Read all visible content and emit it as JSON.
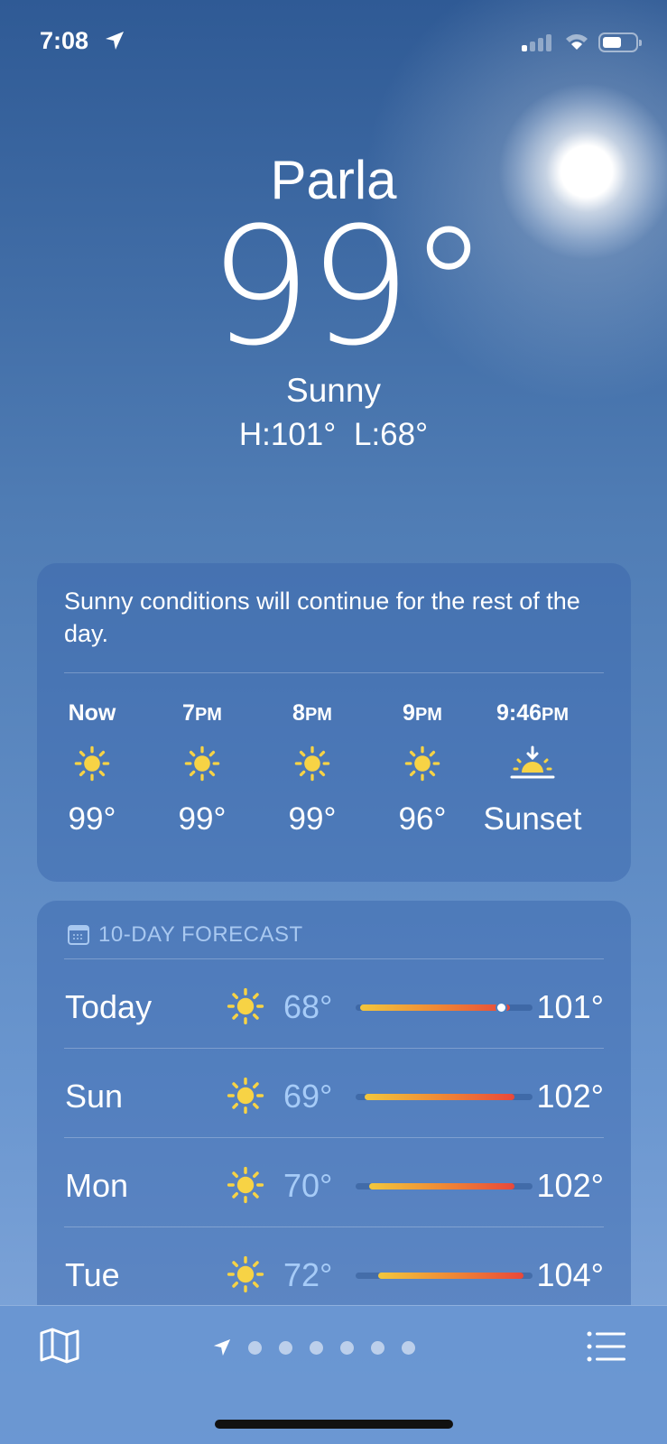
{
  "status": {
    "time": "7:08",
    "icons": [
      "location-arrow",
      "cellular-signal",
      "wifi",
      "battery"
    ]
  },
  "hero": {
    "city": "Parla",
    "temperature": "99°",
    "condition": "Sunny",
    "high_low": "H:101°  L:68°"
  },
  "hourly": {
    "summary": "Sunny conditions will continue for the rest of the day.",
    "items": [
      {
        "time": "Now",
        "suffix": "",
        "icon": "sun",
        "temp": "99°"
      },
      {
        "time": "7",
        "suffix": "PM",
        "icon": "sun",
        "temp": "99°"
      },
      {
        "time": "8",
        "suffix": "PM",
        "icon": "sun",
        "temp": "99°"
      },
      {
        "time": "9",
        "suffix": "PM",
        "icon": "sun",
        "temp": "96°"
      },
      {
        "time": "9:46",
        "suffix": "PM",
        "icon": "sunset",
        "temp": "Sunset"
      }
    ]
  },
  "forecast": {
    "title": "10-DAY FORECAST",
    "current_temp": 99,
    "days": [
      {
        "day": "Today",
        "icon": "sun",
        "low": "68°",
        "high": "101°",
        "low_value": 68,
        "high_value": 101
      },
      {
        "day": "Sun",
        "icon": "sun",
        "low": "69°",
        "high": "102°",
        "low_value": 69,
        "high_value": 102
      },
      {
        "day": "Mon",
        "icon": "sun",
        "low": "70°",
        "high": "102°",
        "low_value": 70,
        "high_value": 102
      },
      {
        "day": "Tue",
        "icon": "sun",
        "low": "72°",
        "high": "104°",
        "low_value": 72,
        "high_value": 104
      }
    ]
  },
  "bottom": {
    "page_count": 7,
    "current_page": 0
  },
  "colors": {
    "sun": "#f7d345",
    "low_temp": "#a6cbf7",
    "bar_start": "#f2c73d",
    "bar_end": "#e8483a"
  }
}
